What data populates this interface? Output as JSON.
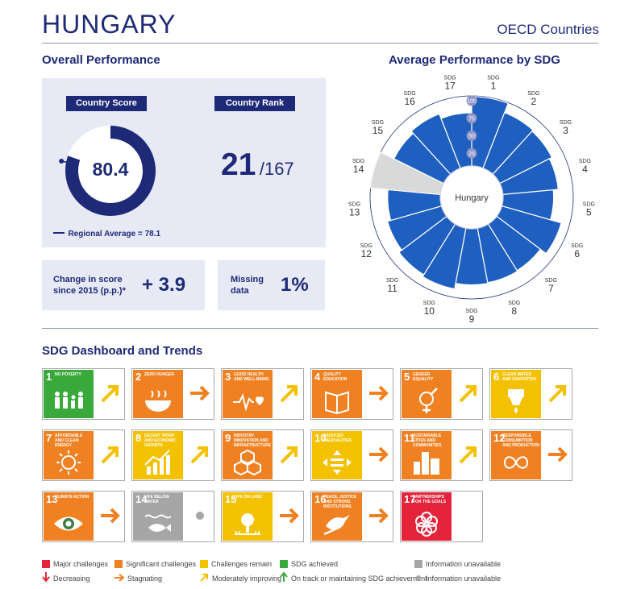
{
  "header": {
    "country": "HUNGARY",
    "group": "OECD Countries"
  },
  "overall": {
    "section_title": "Overall Performance",
    "score_label": "Country Score",
    "score": "80.4",
    "score_value": 80.4,
    "regional_average_text": "Regional Average = 78.1",
    "regional_average_value": 78.1,
    "rank_label": "Country Rank",
    "rank": "21",
    "rank_total": "/167",
    "change_label_line1": "Change in score",
    "change_label_line2": "since 2015 (p.p.)*",
    "change_value": "+ 3.9",
    "missing_label_line1": "Missing",
    "missing_label_line2": "data",
    "missing_value": "1%"
  },
  "radial": {
    "section_title": "Average Performance by SDG",
    "center_label": "Hungary",
    "sdg_prefix": "SDG",
    "scale_ticks": [
      "25",
      "50",
      "75",
      "100"
    ],
    "colors": {
      "bar": "#1f5fbf",
      "missing": "#d9d9d9",
      "grid": "#1e2a78"
    },
    "chart_data": {
      "type": "radial_bar",
      "categories": [
        "1",
        "2",
        "3",
        "4",
        "5",
        "6",
        "7",
        "8",
        "9",
        "10",
        "11",
        "12",
        "13",
        "14",
        "15",
        "16",
        "17"
      ],
      "values": [
        99,
        85,
        83,
        79,
        72,
        88,
        78,
        79,
        80,
        88,
        85,
        80,
        75,
        null,
        79,
        83,
        76
      ],
      "ylim": [
        0,
        100
      ]
    }
  },
  "dashboard": {
    "section_title": "SDG Dashboard and Trends",
    "colors": {
      "red": "#e5243b",
      "orange": "#f08122",
      "yellow": "#f3c100",
      "green": "#3aa93b",
      "grey": "#a6a6a6"
    },
    "sdgs": [
      {
        "num": "1",
        "name": "No poverty",
        "color": "#e5243b",
        "status": "green",
        "trend": "moderately-improving",
        "icon": "people-icon"
      },
      {
        "num": "2",
        "name": "Zero hunger",
        "color": "#dda63a",
        "status": "orange",
        "trend": "stagnating",
        "icon": "bowl-icon"
      },
      {
        "num": "3",
        "name": "Good health and well-being",
        "color": "#4c9f38",
        "status": "orange",
        "trend": "moderately-improving",
        "icon": "heartbeat-icon"
      },
      {
        "num": "4",
        "name": "Quality education",
        "color": "#c5192d",
        "status": "orange",
        "trend": "stagnating",
        "icon": "book-icon"
      },
      {
        "num": "5",
        "name": "Gender equality",
        "color": "#ff3a21",
        "status": "orange",
        "trend": "moderately-improving",
        "icon": "gender-icon"
      },
      {
        "num": "6",
        "name": "Clean water and sanitation",
        "color": "#26bde2",
        "status": "yellow",
        "trend": "moderately-improving",
        "icon": "water-icon"
      },
      {
        "num": "7",
        "name": "Affordable and clean energy",
        "color": "#fcc30b",
        "status": "orange",
        "trend": "moderately-improving",
        "icon": "sun-icon"
      },
      {
        "num": "8",
        "name": "Decent work and economic growth",
        "color": "#a21942",
        "status": "yellow",
        "trend": "moderately-improving",
        "icon": "growth-icon"
      },
      {
        "num": "9",
        "name": "Industry, innovation and infrastructure",
        "color": "#fd6925",
        "status": "orange",
        "trend": "moderately-improving",
        "icon": "cubes-icon"
      },
      {
        "num": "10",
        "name": "Reduced inequalities",
        "color": "#dd1367",
        "status": "yellow",
        "trend": "stagnating",
        "icon": "equality-icon"
      },
      {
        "num": "11",
        "name": "Sustainable cities and communities",
        "color": "#fd9d24",
        "status": "orange",
        "trend": "moderately-improving",
        "icon": "city-icon"
      },
      {
        "num": "12",
        "name": "Responsible consumption and production",
        "color": "#bf8b2e",
        "status": "orange",
        "trend": "stagnating",
        "icon": "infinity-icon"
      },
      {
        "num": "13",
        "name": "Climate action",
        "color": "#3f7e44",
        "status": "orange",
        "trend": "stagnating",
        "icon": "eye-icon"
      },
      {
        "num": "14",
        "name": "Life below water",
        "color": "#0a97d9",
        "status": "grey",
        "trend": "information-unavailable",
        "icon": "fish-icon"
      },
      {
        "num": "15",
        "name": "Life on land",
        "color": "#56c02b",
        "status": "yellow",
        "trend": "stagnating",
        "icon": "tree-icon"
      },
      {
        "num": "16",
        "name": "Peace, justice and strong institutions",
        "color": "#00689d",
        "status": "orange",
        "trend": "stagnating",
        "icon": "dove-icon"
      },
      {
        "num": "17",
        "name": "Partnerships for the goals",
        "color": "#19486a",
        "status": "red",
        "trend": "none",
        "icon": "flower-icon"
      }
    ]
  },
  "legend": {
    "row1": [
      {
        "label": "Major challenges",
        "color": "#e5243b"
      },
      {
        "label": "Significant challenges",
        "color": "#f08122"
      },
      {
        "label": "Challenges remain",
        "color": "#f3c100"
      },
      {
        "label": "SDG achieved",
        "color": "#3aa93b"
      },
      {
        "label": "Information unavailable",
        "color": "#a6a6a6"
      }
    ],
    "row2": [
      {
        "label": "Decreasing",
        "icon": "arrow-down-icon",
        "color": "#e5243b"
      },
      {
        "label": "Stagnating",
        "icon": "arrow-right-icon",
        "color": "#f08122"
      },
      {
        "label": "Moderately improving",
        "icon": "arrow-up-right-icon",
        "color": "#f3c100"
      },
      {
        "label": "On track or maintaining SDG achievement",
        "icon": "arrow-up-icon",
        "color": "#3aa93b"
      },
      {
        "label": "Information unavailable",
        "icon": "dot-icon",
        "color": "#a6a6a6"
      }
    ]
  }
}
